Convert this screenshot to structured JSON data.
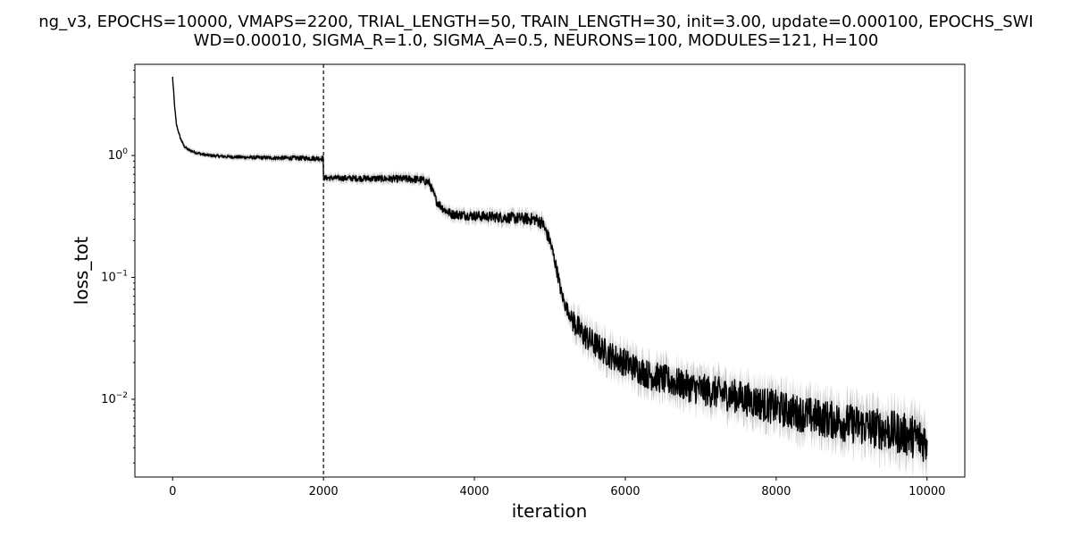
{
  "chart_data": {
    "type": "line",
    "title_lines": [
      "ng_v3, EPOCHS=10000, VMAPS=2200, TRIAL_LENGTH=50, TRAIN_LENGTH=30, init=3.00, update=0.000100, EPOCHS_SWI",
      "WD=0.00010, SIGMA_R=1.0, SIGMA_A=0.5, NEURONS=100, MODULES=121, H=100"
    ],
    "xlabel": "iteration",
    "ylabel": "loss_tot",
    "xlim": [
      -500,
      10500
    ],
    "ylim": [
      0.0023,
      5.6
    ],
    "y_scale": "log",
    "x_ticks": [
      0,
      2000,
      4000,
      6000,
      8000,
      10000
    ],
    "y_ticks": [
      {
        "value": 0.01,
        "base": "10",
        "exp": "−2"
      },
      {
        "value": 0.1,
        "base": "10",
        "exp": "−1"
      },
      {
        "value": 1,
        "base": "10",
        "exp": "0"
      }
    ],
    "vline": {
      "x": 2000,
      "style": "dashed"
    },
    "series": [
      {
        "color": "#000000",
        "band_color": "#c8c8c8",
        "x": [
          0,
          25,
          50,
          100,
          150,
          200,
          300,
          400,
          500,
          700,
          1000,
          1400,
          1800,
          1999,
          2001,
          2400,
          2800,
          3200,
          3300,
          3400,
          3500,
          3600,
          3700,
          4000,
          4400,
          4800,
          4900,
          5000,
          5050,
          5100,
          5150,
          5200,
          5300,
          5400,
          5600,
          5800,
          6000,
          6300,
          6600,
          7000,
          7500,
          8000,
          8500,
          9000,
          9500,
          9800,
          10000
        ],
        "y": [
          4.4,
          2.6,
          1.8,
          1.4,
          1.2,
          1.12,
          1.06,
          1.02,
          1.0,
          0.98,
          0.965,
          0.955,
          0.95,
          0.945,
          0.655,
          0.65,
          0.645,
          0.64,
          0.63,
          0.6,
          0.42,
          0.36,
          0.33,
          0.32,
          0.31,
          0.3,
          0.28,
          0.2,
          0.15,
          0.11,
          0.075,
          0.06,
          0.045,
          0.036,
          0.028,
          0.023,
          0.02,
          0.016,
          0.014,
          0.012,
          0.0105,
          0.0085,
          0.0072,
          0.0063,
          0.0055,
          0.005,
          0.0045
        ]
      }
    ]
  }
}
